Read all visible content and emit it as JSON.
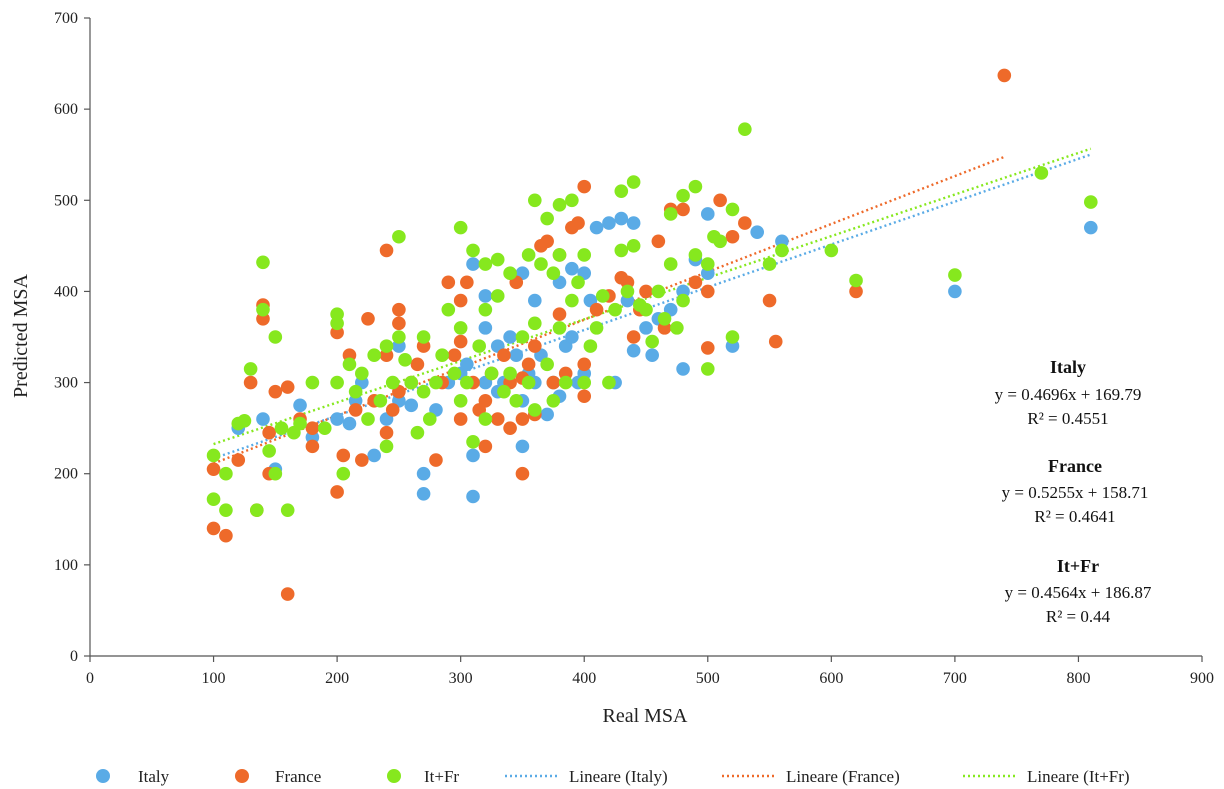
{
  "chart_data": {
    "type": "scatter",
    "title": "",
    "xlabel": "Real MSA",
    "ylabel": "Predicted MSA",
    "xlim": [
      0,
      900
    ],
    "ylim": [
      0,
      700
    ],
    "xticks": [
      0,
      100,
      200,
      300,
      400,
      500,
      600,
      700,
      800,
      900
    ],
    "yticks": [
      0,
      100,
      200,
      300,
      400,
      500,
      600,
      700
    ],
    "grid": false,
    "legend_position": "bottom",
    "series": [
      {
        "name": "Italy",
        "color": "#5aabe6",
        "points": [
          [
            120,
            250
          ],
          [
            140,
            260
          ],
          [
            150,
            205
          ],
          [
            170,
            275
          ],
          [
            180,
            240
          ],
          [
            200,
            260
          ],
          [
            210,
            255
          ],
          [
            215,
            280
          ],
          [
            220,
            300
          ],
          [
            230,
            220
          ],
          [
            240,
            260
          ],
          [
            250,
            280
          ],
          [
            250,
            340
          ],
          [
            260,
            275
          ],
          [
            270,
            200
          ],
          [
            270,
            178
          ],
          [
            280,
            270
          ],
          [
            290,
            300
          ],
          [
            300,
            310
          ],
          [
            305,
            320
          ],
          [
            310,
            430
          ],
          [
            310,
            220
          ],
          [
            310,
            175
          ],
          [
            320,
            300
          ],
          [
            320,
            360
          ],
          [
            320,
            395
          ],
          [
            330,
            290
          ],
          [
            330,
            340
          ],
          [
            335,
            300
          ],
          [
            340,
            350
          ],
          [
            345,
            330
          ],
          [
            350,
            280
          ],
          [
            350,
            230
          ],
          [
            350,
            420
          ],
          [
            355,
            310
          ],
          [
            360,
            390
          ],
          [
            360,
            300
          ],
          [
            365,
            330
          ],
          [
            370,
            265
          ],
          [
            375,
            300
          ],
          [
            380,
            410
          ],
          [
            380,
            285
          ],
          [
            385,
            340
          ],
          [
            390,
            350
          ],
          [
            390,
            425
          ],
          [
            395,
            300
          ],
          [
            400,
            420
          ],
          [
            400,
            310
          ],
          [
            405,
            390
          ],
          [
            410,
            470
          ],
          [
            420,
            475
          ],
          [
            425,
            300
          ],
          [
            430,
            480
          ],
          [
            435,
            390
          ],
          [
            440,
            475
          ],
          [
            440,
            335
          ],
          [
            450,
            360
          ],
          [
            455,
            330
          ],
          [
            460,
            370
          ],
          [
            470,
            380
          ],
          [
            480,
            315
          ],
          [
            480,
            400
          ],
          [
            490,
            435
          ],
          [
            500,
            485
          ],
          [
            500,
            420
          ],
          [
            520,
            340
          ],
          [
            540,
            465
          ],
          [
            560,
            455
          ],
          [
            700,
            400
          ],
          [
            810,
            470
          ]
        ]
      },
      {
        "name": "France",
        "color": "#ee6a2a",
        "points": [
          [
            100,
            140
          ],
          [
            100,
            205
          ],
          [
            110,
            132
          ],
          [
            120,
            215
          ],
          [
            130,
            300
          ],
          [
            135,
            160
          ],
          [
            140,
            385
          ],
          [
            140,
            370
          ],
          [
            145,
            200
          ],
          [
            145,
            245
          ],
          [
            150,
            290
          ],
          [
            160,
            295
          ],
          [
            160,
            68
          ],
          [
            170,
            260
          ],
          [
            180,
            230
          ],
          [
            180,
            250
          ],
          [
            200,
            180
          ],
          [
            200,
            355
          ],
          [
            205,
            220
          ],
          [
            210,
            330
          ],
          [
            215,
            270
          ],
          [
            220,
            215
          ],
          [
            225,
            370
          ],
          [
            230,
            280
          ],
          [
            240,
            445
          ],
          [
            240,
            330
          ],
          [
            240,
            245
          ],
          [
            245,
            270
          ],
          [
            250,
            380
          ],
          [
            250,
            365
          ],
          [
            250,
            290
          ],
          [
            260,
            300
          ],
          [
            265,
            320
          ],
          [
            270,
            340
          ],
          [
            280,
            215
          ],
          [
            285,
            300
          ],
          [
            290,
            410
          ],
          [
            295,
            330
          ],
          [
            300,
            260
          ],
          [
            300,
            390
          ],
          [
            300,
            345
          ],
          [
            305,
            410
          ],
          [
            310,
            300
          ],
          [
            315,
            270
          ],
          [
            320,
            280
          ],
          [
            320,
            230
          ],
          [
            325,
            310
          ],
          [
            330,
            260
          ],
          [
            335,
            330
          ],
          [
            340,
            250
          ],
          [
            340,
            300
          ],
          [
            345,
            410
          ],
          [
            350,
            260
          ],
          [
            350,
            305
          ],
          [
            350,
            200
          ],
          [
            355,
            320
          ],
          [
            360,
            265
          ],
          [
            360,
            340
          ],
          [
            365,
            450
          ],
          [
            370,
            455
          ],
          [
            375,
            300
          ],
          [
            380,
            440
          ],
          [
            380,
            375
          ],
          [
            385,
            310
          ],
          [
            390,
            470
          ],
          [
            395,
            475
          ],
          [
            400,
            515
          ],
          [
            400,
            320
          ],
          [
            400,
            285
          ],
          [
            410,
            380
          ],
          [
            420,
            395
          ],
          [
            430,
            415
          ],
          [
            435,
            410
          ],
          [
            440,
            350
          ],
          [
            445,
            380
          ],
          [
            450,
            400
          ],
          [
            460,
            455
          ],
          [
            465,
            360
          ],
          [
            470,
            490
          ],
          [
            480,
            490
          ],
          [
            490,
            410
          ],
          [
            500,
            400
          ],
          [
            500,
            338
          ],
          [
            510,
            500
          ],
          [
            520,
            460
          ],
          [
            530,
            475
          ],
          [
            550,
            390
          ],
          [
            555,
            345
          ],
          [
            620,
            400
          ],
          [
            740,
            637
          ]
        ]
      },
      {
        "name": "It+Fr",
        "color": "#86e81e",
        "points": [
          [
            100,
            220
          ],
          [
            100,
            172
          ],
          [
            110,
            200
          ],
          [
            110,
            160
          ],
          [
            120,
            255
          ],
          [
            125,
            258
          ],
          [
            130,
            315
          ],
          [
            135,
            160
          ],
          [
            140,
            432
          ],
          [
            140,
            380
          ],
          [
            145,
            225
          ],
          [
            150,
            200
          ],
          [
            150,
            350
          ],
          [
            155,
            250
          ],
          [
            160,
            160
          ],
          [
            165,
            245
          ],
          [
            170,
            255
          ],
          [
            180,
            300
          ],
          [
            190,
            250
          ],
          [
            200,
            375
          ],
          [
            200,
            365
          ],
          [
            200,
            300
          ],
          [
            205,
            200
          ],
          [
            210,
            320
          ],
          [
            215,
            290
          ],
          [
            220,
            310
          ],
          [
            225,
            260
          ],
          [
            230,
            330
          ],
          [
            235,
            280
          ],
          [
            240,
            340
          ],
          [
            240,
            230
          ],
          [
            245,
            300
          ],
          [
            250,
            460
          ],
          [
            250,
            350
          ],
          [
            255,
            325
          ],
          [
            260,
            300
          ],
          [
            265,
            245
          ],
          [
            270,
            290
          ],
          [
            270,
            350
          ],
          [
            275,
            260
          ],
          [
            280,
            300
          ],
          [
            285,
            330
          ],
          [
            290,
            380
          ],
          [
            295,
            310
          ],
          [
            300,
            470
          ],
          [
            300,
            360
          ],
          [
            300,
            280
          ],
          [
            305,
            300
          ],
          [
            310,
            445
          ],
          [
            310,
            235
          ],
          [
            315,
            340
          ],
          [
            320,
            430
          ],
          [
            320,
            380
          ],
          [
            320,
            260
          ],
          [
            325,
            310
          ],
          [
            330,
            435
          ],
          [
            330,
            395
          ],
          [
            335,
            290
          ],
          [
            340,
            420
          ],
          [
            340,
            310
          ],
          [
            345,
            280
          ],
          [
            350,
            350
          ],
          [
            355,
            440
          ],
          [
            355,
            300
          ],
          [
            360,
            500
          ],
          [
            360,
            365
          ],
          [
            360,
            270
          ],
          [
            365,
            430
          ],
          [
            370,
            480
          ],
          [
            370,
            320
          ],
          [
            375,
            420
          ],
          [
            375,
            280
          ],
          [
            380,
            495
          ],
          [
            380,
            440
          ],
          [
            380,
            360
          ],
          [
            385,
            300
          ],
          [
            390,
            390
          ],
          [
            390,
            500
          ],
          [
            395,
            410
          ],
          [
            400,
            440
          ],
          [
            400,
            300
          ],
          [
            405,
            340
          ],
          [
            410,
            360
          ],
          [
            415,
            395
          ],
          [
            420,
            300
          ],
          [
            425,
            380
          ],
          [
            430,
            510
          ],
          [
            430,
            445
          ],
          [
            435,
            400
          ],
          [
            440,
            520
          ],
          [
            440,
            450
          ],
          [
            445,
            385
          ],
          [
            450,
            380
          ],
          [
            455,
            345
          ],
          [
            460,
            400
          ],
          [
            465,
            370
          ],
          [
            470,
            485
          ],
          [
            470,
            430
          ],
          [
            475,
            360
          ],
          [
            480,
            505
          ],
          [
            480,
            390
          ],
          [
            490,
            515
          ],
          [
            490,
            440
          ],
          [
            500,
            430
          ],
          [
            500,
            315
          ],
          [
            505,
            460
          ],
          [
            510,
            455
          ],
          [
            520,
            490
          ],
          [
            520,
            350
          ],
          [
            530,
            578
          ],
          [
            550,
            430
          ],
          [
            560,
            445
          ],
          [
            600,
            445
          ],
          [
            620,
            412
          ],
          [
            700,
            418
          ],
          [
            770,
            530
          ],
          [
            810,
            498
          ]
        ]
      }
    ],
    "trendlines": [
      {
        "name": "Lineare (Italy)",
        "color": "#5aabe6",
        "slope": 0.4696,
        "intercept": 169.79,
        "x_range": [
          100,
          810
        ]
      },
      {
        "name": "Lineare (France)",
        "color": "#ee6a2a",
        "slope": 0.5255,
        "intercept": 158.71,
        "x_range": [
          100,
          740
        ]
      },
      {
        "name": "Lineare (It+Fr)",
        "color": "#86e81e",
        "slope": 0.4564,
        "intercept": 186.87,
        "x_range": [
          100,
          810
        ]
      }
    ],
    "annotations": [
      {
        "title": "Italy",
        "equation": "y = 0.4696x + 169.79",
        "r2": "R² = 0.4551"
      },
      {
        "title": "France",
        "equation": "y = 0.5255x + 158.71",
        "r2": "R² = 0.4641"
      },
      {
        "title": "It+Fr",
        "equation": "y = 0.4564x + 186.87",
        "r2": "R² = 0.44"
      }
    ]
  }
}
